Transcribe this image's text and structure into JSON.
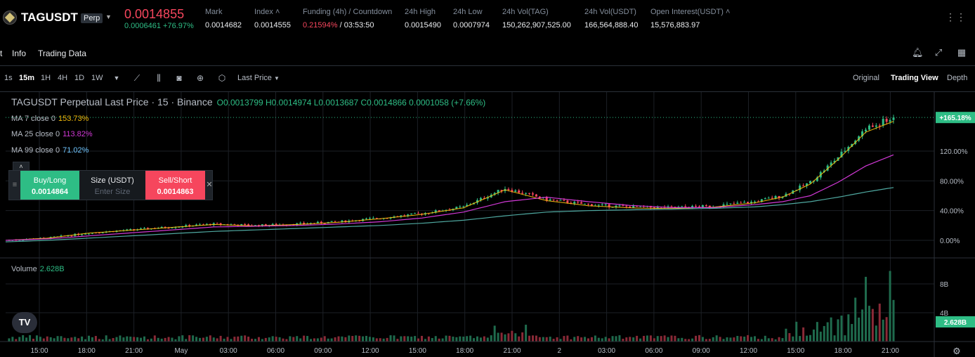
{
  "header": {
    "symbol": "TAGUSDT",
    "badge": "Perp",
    "last_price": "0.0014855",
    "change": "0.0006461 +76.97%",
    "stats": [
      {
        "key": "Mark",
        "value": "0.0014682"
      },
      {
        "key": "Index ˄",
        "value": "0.0014555"
      },
      {
        "key": "Funding (4h) / Countdown",
        "value_red": "0.21594%",
        "value": " / 03:53:50"
      },
      {
        "key": "24h High",
        "value": "0.0015490"
      },
      {
        "key": "24h Low",
        "value": "0.0007974"
      },
      {
        "key": "24h Vol(TAG)",
        "value": "150,262,907,525.00"
      },
      {
        "key": "24h Vol(USDT)",
        "value": "166,564,888.40"
      },
      {
        "key": "Open Interest(USDT) ˄",
        "value": "15,576,883.97"
      }
    ]
  },
  "tabs": [
    "t",
    "Info",
    "Trading Data"
  ],
  "toolbar": {
    "timeframes": [
      "1s",
      "15m",
      "1H",
      "4H",
      "1D",
      "1W"
    ],
    "active_timeframe": "15m",
    "price_type": "Last Price",
    "views": [
      "Original",
      "Trading View",
      "Depth"
    ],
    "active_view": "Trading View"
  },
  "legend": {
    "title": "TAGUSDT Perpetual Last Price · 15 · Binance",
    "ohlc": "O0.0013799 H0.0014974 L0.0013687 C0.0014866 0.0001058 (+7.66%)",
    "ma": [
      {
        "label": "MA 7 close 0",
        "value": "153.73%",
        "color": "#f0b90b"
      },
      {
        "label": "MA 25 close 0",
        "value": "113.82%",
        "color": "#d138d6"
      },
      {
        "label": "MA 99 close 0",
        "value": "71.02%",
        "color": "#70c6ff"
      }
    ],
    "volume_label": "Volume",
    "volume_value": "2.628B"
  },
  "order_panel": {
    "buy_label": "Buy/Long",
    "buy_price": "0.0014864",
    "size_label": "Size (USDT)",
    "size_placeholder": "Enter Size",
    "sell_label": "Sell/Short",
    "sell_price": "0.0014863"
  },
  "price_axis": [
    "120.00%",
    "80.00%",
    "40.00%",
    "0.00%"
  ],
  "current_tag": "+165.18%",
  "volume_axis": [
    "8B",
    "4B"
  ],
  "volume_tag": "2.628B",
  "time_axis": [
    "15:00",
    "18:00",
    "21:00",
    "May",
    "03:00",
    "06:00",
    "09:00",
    "12:00",
    "15:00",
    "18:00",
    "21:00",
    "2",
    "03:00",
    "06:00",
    "09:00",
    "12:00",
    "15:00",
    "18:00",
    "21:00"
  ],
  "chart_data": {
    "type": "line",
    "title": "TAGUSDT Perpetual Last Price · 15 · Binance",
    "ylabel": "",
    "ylim": [
      -5,
      175
    ],
    "series": [
      {
        "name": "",
        "x_index": [
          0,
          12,
          24,
          36,
          48,
          60,
          72,
          84,
          96,
          108,
          120,
          132,
          144,
          156,
          168,
          180,
          192,
          204,
          216,
          224,
          232,
          240,
          248,
          256
        ],
        "values": [
          0,
          3,
          10,
          14,
          18,
          22,
          20,
          22,
          25,
          30,
          36,
          45,
          70,
          55,
          48,
          45,
          44,
          46,
          52,
          60,
          78,
          112,
          150,
          165
        ]
      },
      {
        "name": "MA 25 close 0",
        "values": [
          0,
          2,
          6,
          10,
          14,
          18,
          19,
          20,
          22,
          25,
          30,
          38,
          52,
          58,
          52,
          47,
          44,
          44,
          48,
          52,
          60,
          78,
          100,
          115
        ]
      },
      {
        "name": "MA 99 close 0",
        "values": [
          -2,
          0,
          3,
          6,
          9,
          12,
          14,
          16,
          18,
          20,
          23,
          27,
          33,
          38,
          40,
          41,
          42,
          43,
          45,
          48,
          52,
          58,
          65,
          71
        ]
      }
    ],
    "volume": {
      "ylim": [
        0,
        11
      ],
      "unit": "B"
    }
  }
}
